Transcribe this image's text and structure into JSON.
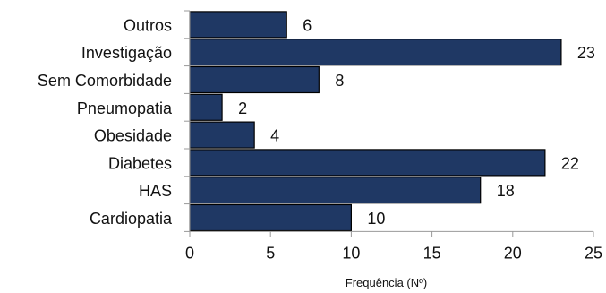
{
  "chart_data": {
    "type": "bar",
    "orientation": "horizontal",
    "categories": [
      "Outros",
      "Investigação",
      "Sem Comorbidade",
      "Pneumopatia",
      "Obesidade",
      "Diabetes",
      "HAS",
      "Cardiopatia"
    ],
    "values": [
      6,
      23,
      8,
      2,
      4,
      22,
      18,
      10
    ],
    "title": "",
    "xlabel": "Frequência (Nº)",
    "ylabel": "",
    "xlim": [
      0,
      25
    ],
    "xticks": [
      0,
      5,
      10,
      15,
      20,
      25
    ],
    "grid": false,
    "legend": "none",
    "bar_color": "#1f3864",
    "bar_edge_color": "#000000",
    "data_labels": true
  }
}
